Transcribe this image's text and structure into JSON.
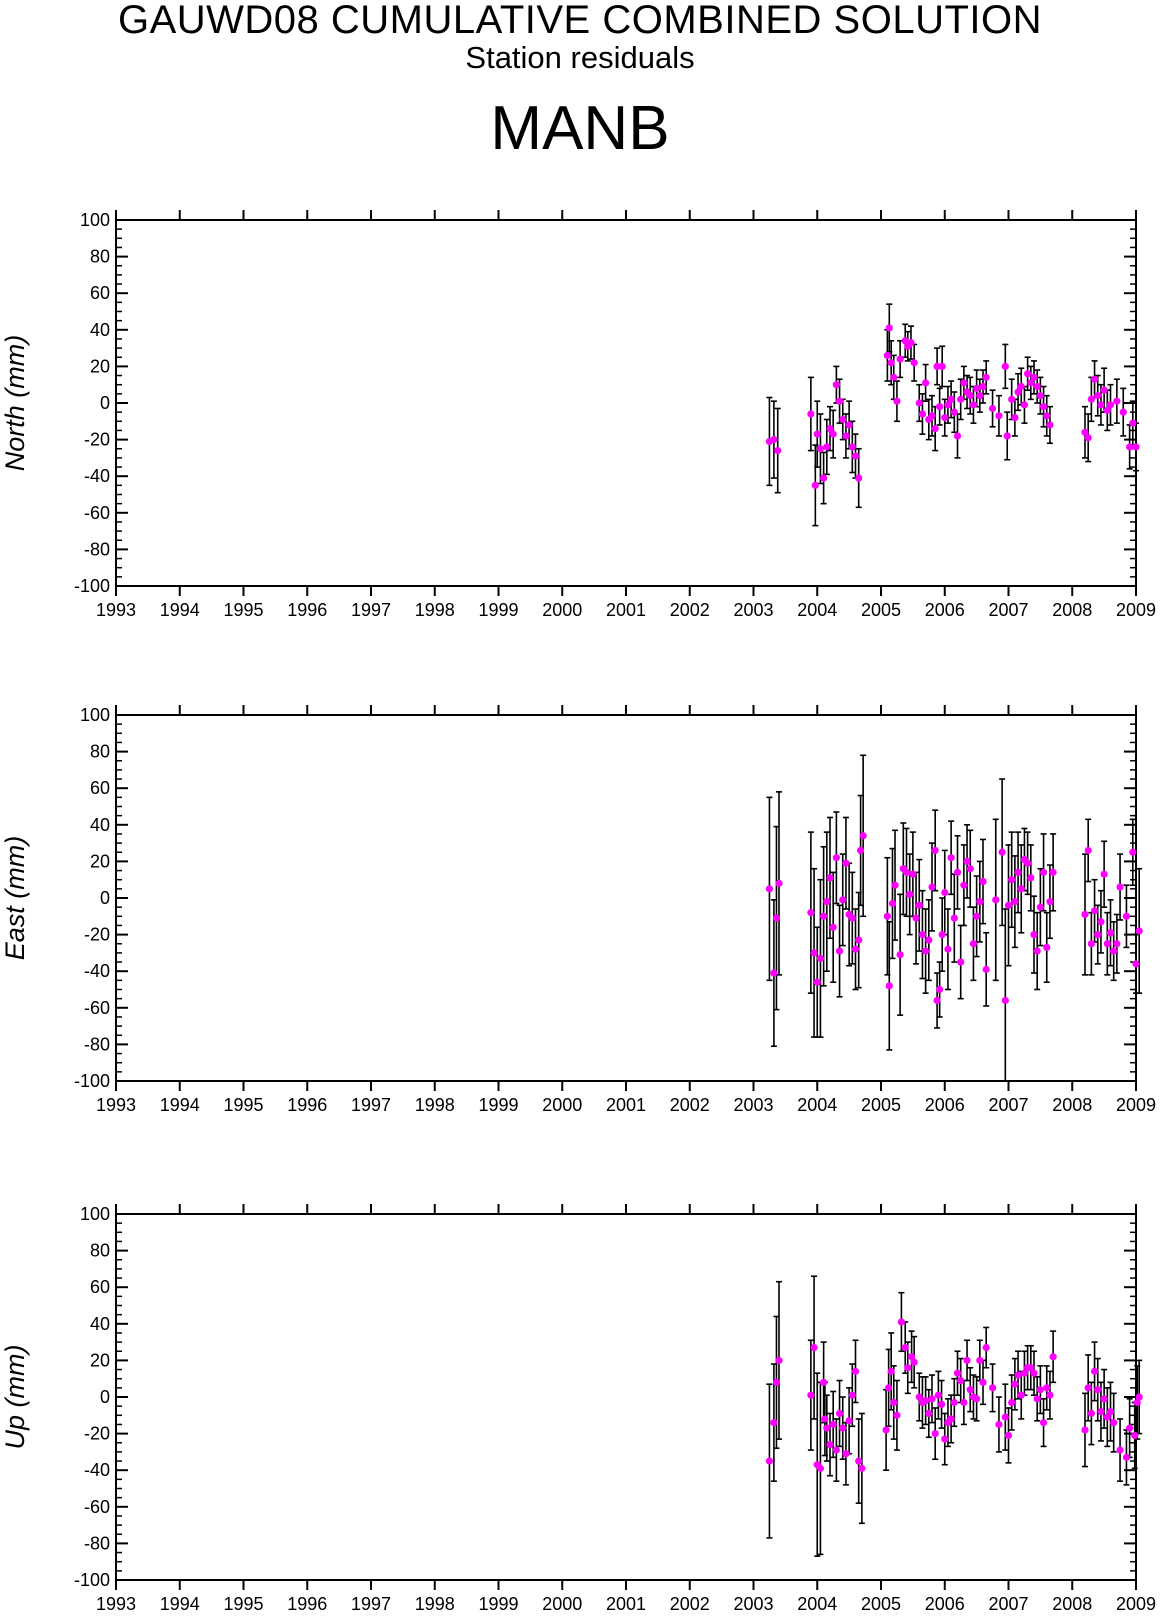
{
  "header": {
    "title": "GAUWD08 CUMULATIVE COMBINED SOLUTION",
    "subtitle": "Station residuals",
    "station": "MANB"
  },
  "colors": {
    "point": "#ff00ff",
    "error_bar": "#000000",
    "axis": "#000000"
  },
  "chart_data": [
    {
      "type": "scatter",
      "ylabel": "North (mm)",
      "xlim": [
        1993,
        2009
      ],
      "ylim": [
        -100,
        100
      ],
      "x_ticks": [
        "1993",
        "1994",
        "1995",
        "1996",
        "1997",
        "1998",
        "1999",
        "2000",
        "2001",
        "2002",
        "2003",
        "2004",
        "2005",
        "2006",
        "2007",
        "2008",
        "2009"
      ],
      "y_ticks": [
        "100",
        "80",
        "60",
        "40",
        "20",
        "0",
        "-20",
        "-40",
        "-60",
        "-80",
        "-100"
      ],
      "grid": false,
      "error_bars": true,
      "points": [
        [
          2003.25,
          -21,
          24
        ],
        [
          2003.32,
          -20,
          21
        ],
        [
          2003.38,
          -26,
          23
        ],
        [
          2003.9,
          -6,
          20
        ],
        [
          2003.97,
          -45,
          22
        ],
        [
          2004.0,
          -17,
          18
        ],
        [
          2004.05,
          -25,
          19
        ],
        [
          2004.1,
          -41,
          14
        ],
        [
          2004.15,
          -24,
          15
        ],
        [
          2004.2,
          -14,
          12
        ],
        [
          2004.25,
          -17,
          13
        ],
        [
          2004.3,
          10,
          10
        ],
        [
          2004.35,
          1,
          12
        ],
        [
          2004.4,
          -9,
          11
        ],
        [
          2004.45,
          -18,
          12
        ],
        [
          2004.5,
          -12,
          13
        ],
        [
          2004.55,
          -24,
          14
        ],
        [
          2004.6,
          -29,
          12
        ],
        [
          2004.65,
          -41,
          16
        ],
        [
          2005.1,
          26,
          14
        ],
        [
          2005.13,
          41,
          13
        ],
        [
          2005.16,
          22,
          12
        ],
        [
          2005.2,
          14,
          12
        ],
        [
          2005.25,
          1,
          11
        ],
        [
          2005.3,
          24,
          10
        ],
        [
          2005.38,
          34,
          9
        ],
        [
          2005.42,
          31,
          8
        ],
        [
          2005.47,
          33,
          9
        ],
        [
          2005.52,
          22,
          10
        ],
        [
          2005.6,
          0,
          10
        ],
        [
          2005.65,
          -6,
          11
        ],
        [
          2005.7,
          11,
          10
        ],
        [
          2005.75,
          -9,
          11
        ],
        [
          2005.8,
          -7,
          11
        ],
        [
          2005.85,
          -14,
          12
        ],
        [
          2005.88,
          20,
          10
        ],
        [
          2005.92,
          -2,
          10
        ],
        [
          2005.96,
          20,
          11
        ],
        [
          2006.0,
          -8,
          10
        ],
        [
          2006.05,
          -1,
          10
        ],
        [
          2006.1,
          2,
          10
        ],
        [
          2006.15,
          -5,
          11
        ],
        [
          2006.2,
          -18,
          12
        ],
        [
          2006.25,
          2,
          11
        ],
        [
          2006.3,
          11,
          9
        ],
        [
          2006.35,
          6,
          9
        ],
        [
          2006.4,
          4,
          10
        ],
        [
          2006.45,
          -1,
          10
        ],
        [
          2006.5,
          8,
          10
        ],
        [
          2006.55,
          4,
          9
        ],
        [
          2006.6,
          9,
          9
        ],
        [
          2006.65,
          14,
          9
        ],
        [
          2006.75,
          -3,
          10
        ],
        [
          2006.85,
          -7,
          11
        ],
        [
          2006.95,
          20,
          12
        ],
        [
          2006.98,
          -18,
          13
        ],
        [
          2007.05,
          2,
          11
        ],
        [
          2007.1,
          -8,
          10
        ],
        [
          2007.15,
          6,
          10
        ],
        [
          2007.2,
          9,
          10
        ],
        [
          2007.25,
          -1,
          10
        ],
        [
          2007.3,
          16,
          9
        ],
        [
          2007.35,
          11,
          9
        ],
        [
          2007.4,
          14,
          9
        ],
        [
          2007.45,
          9,
          9
        ],
        [
          2007.5,
          4,
          10
        ],
        [
          2007.55,
          -2,
          11
        ],
        [
          2007.6,
          -7,
          11
        ],
        [
          2007.65,
          -12,
          10
        ],
        [
          2008.2,
          -16,
          14
        ],
        [
          2008.25,
          -19,
          13
        ],
        [
          2008.3,
          2,
          12
        ],
        [
          2008.35,
          13,
          10
        ],
        [
          2008.4,
          4,
          11
        ],
        [
          2008.45,
          -1,
          11
        ],
        [
          2008.5,
          7,
          12
        ],
        [
          2008.55,
          -4,
          11
        ],
        [
          2008.6,
          -1,
          11
        ],
        [
          2008.7,
          1,
          12
        ],
        [
          2008.8,
          -5,
          13
        ],
        [
          2008.9,
          -24,
          12
        ],
        [
          2008.95,
          -11,
          12
        ],
        [
          2009.0,
          -24,
          13
        ]
      ]
    },
    {
      "type": "scatter",
      "ylabel": "East (mm)",
      "xlim": [
        1993,
        2009
      ],
      "ylim": [
        -100,
        100
      ],
      "x_ticks": [
        "1993",
        "1994",
        "1995",
        "1996",
        "1997",
        "1998",
        "1999",
        "2000",
        "2001",
        "2002",
        "2003",
        "2004",
        "2005",
        "2006",
        "2007",
        "2008",
        "2009"
      ],
      "y_ticks": [
        "100",
        "80",
        "60",
        "40",
        "20",
        "0",
        "-20",
        "-40",
        "-60",
        "-80",
        "-100"
      ],
      "grid": false,
      "error_bars": true,
      "points": [
        [
          2003.25,
          5,
          50
        ],
        [
          2003.32,
          -41,
          40
        ],
        [
          2003.36,
          -11,
          50
        ],
        [
          2003.4,
          8,
          50
        ],
        [
          2003.9,
          -8,
          44
        ],
        [
          2003.95,
          -30,
          46
        ],
        [
          2004.0,
          -46,
          30
        ],
        [
          2004.05,
          -33,
          43
        ],
        [
          2004.1,
          -10,
          38
        ],
        [
          2004.15,
          -2,
          38
        ],
        [
          2004.2,
          11,
          33
        ],
        [
          2004.25,
          -16,
          30
        ],
        [
          2004.3,
          22,
          25
        ],
        [
          2004.35,
          -29,
          25
        ],
        [
          2004.4,
          -1,
          25
        ],
        [
          2004.45,
          19,
          25
        ],
        [
          2004.5,
          -9,
          28
        ],
        [
          2004.55,
          -11,
          25
        ],
        [
          2004.6,
          -28,
          22
        ],
        [
          2004.65,
          -23,
          26
        ],
        [
          2004.68,
          26,
          30
        ],
        [
          2004.72,
          34,
          44
        ],
        [
          2005.1,
          -10,
          32
        ],
        [
          2005.13,
          -48,
          35
        ],
        [
          2005.18,
          -3,
          30
        ],
        [
          2005.22,
          7,
          30
        ],
        [
          2005.3,
          -31,
          33
        ],
        [
          2005.35,
          16,
          25
        ],
        [
          2005.4,
          14,
          24
        ],
        [
          2005.45,
          2,
          22
        ],
        [
          2005.5,
          13,
          23
        ],
        [
          2005.55,
          -11,
          25
        ],
        [
          2005.6,
          -4,
          25
        ],
        [
          2005.65,
          -20,
          24
        ],
        [
          2005.7,
          -29,
          23
        ],
        [
          2005.75,
          -23,
          22
        ],
        [
          2005.8,
          6,
          24
        ],
        [
          2005.85,
          26,
          22
        ],
        [
          2005.88,
          -56,
          15
        ],
        [
          2005.92,
          -50,
          15
        ],
        [
          2005.96,
          -20,
          20
        ],
        [
          2006.0,
          3,
          23
        ],
        [
          2006.05,
          -28,
          22
        ],
        [
          2006.1,
          22,
          20
        ],
        [
          2006.15,
          -11,
          24
        ],
        [
          2006.2,
          14,
          20
        ],
        [
          2006.25,
          -35,
          20
        ],
        [
          2006.3,
          7,
          22
        ],
        [
          2006.35,
          20,
          20
        ],
        [
          2006.4,
          16,
          21
        ],
        [
          2006.45,
          -25,
          20
        ],
        [
          2006.5,
          -10,
          22
        ],
        [
          2006.55,
          -2,
          22
        ],
        [
          2006.6,
          9,
          23
        ],
        [
          2006.65,
          -39,
          20
        ],
        [
          2006.8,
          -1,
          44
        ],
        [
          2006.9,
          25,
          40
        ],
        [
          2006.95,
          -56,
          50
        ],
        [
          2007.0,
          -4,
          33
        ],
        [
          2007.05,
          10,
          26
        ],
        [
          2007.1,
          -2,
          25
        ],
        [
          2007.15,
          14,
          22
        ],
        [
          2007.2,
          5,
          24
        ],
        [
          2007.25,
          21,
          17
        ],
        [
          2007.3,
          19,
          17
        ],
        [
          2007.35,
          11,
          18
        ],
        [
          2007.4,
          -20,
          21
        ],
        [
          2007.45,
          -29,
          21
        ],
        [
          2007.5,
          -5,
          21
        ],
        [
          2007.55,
          14,
          21
        ],
        [
          2007.6,
          -27,
          19
        ],
        [
          2007.65,
          -2,
          20
        ],
        [
          2007.7,
          14,
          21
        ],
        [
          2008.2,
          -9,
          33
        ],
        [
          2008.25,
          26,
          17
        ],
        [
          2008.3,
          -25,
          17
        ],
        [
          2008.35,
          -7,
          17
        ],
        [
          2008.4,
          -20,
          16
        ],
        [
          2008.45,
          -13,
          17
        ],
        [
          2008.5,
          13,
          18
        ],
        [
          2008.55,
          -25,
          17
        ],
        [
          2008.6,
          -19,
          18
        ],
        [
          2008.65,
          -29,
          16
        ],
        [
          2008.7,
          -25,
          16
        ],
        [
          2008.75,
          6,
          18
        ],
        [
          2008.85,
          -10,
          17
        ],
        [
          2008.95,
          25,
          18
        ],
        [
          2009.0,
          -36,
          16
        ],
        [
          2009.05,
          -18,
          34
        ]
      ]
    },
    {
      "type": "scatter",
      "ylabel": "Up (mm)",
      "xlim": [
        1993,
        2009
      ],
      "ylim": [
        -100,
        100
      ],
      "x_ticks": [
        "1993",
        "1994",
        "1995",
        "1996",
        "1997",
        "1998",
        "1999",
        "2000",
        "2001",
        "2002",
        "2003",
        "2004",
        "2005",
        "2006",
        "2007",
        "2008",
        "2009"
      ],
      "y_ticks": [
        "100",
        "80",
        "60",
        "40",
        "20",
        "0",
        "-20",
        "-40",
        "-60",
        "-80",
        "-100"
      ],
      "grid": false,
      "error_bars": true,
      "points": [
        [
          2003.25,
          -35,
          42
        ],
        [
          2003.32,
          -14,
          32
        ],
        [
          2003.36,
          8,
          36
        ],
        [
          2003.4,
          20,
          43
        ],
        [
          2003.9,
          1,
          30
        ],
        [
          2003.95,
          27,
          39
        ],
        [
          2004.0,
          -37,
          50
        ],
        [
          2004.05,
          -39,
          47
        ],
        [
          2004.1,
          8,
          22
        ],
        [
          2004.12,
          -12,
          20
        ],
        [
          2004.15,
          -17,
          18
        ],
        [
          2004.2,
          -26,
          17
        ],
        [
          2004.25,
          -15,
          18
        ],
        [
          2004.3,
          -29,
          17
        ],
        [
          2004.35,
          -9,
          18
        ],
        [
          2004.4,
          -17,
          17
        ],
        [
          2004.45,
          -31,
          17
        ],
        [
          2004.5,
          -13,
          18
        ],
        [
          2004.55,
          1,
          17
        ],
        [
          2004.6,
          14,
          17
        ],
        [
          2004.65,
          -35,
          23
        ],
        [
          2004.7,
          -39,
          30
        ],
        [
          2005.08,
          -18,
          22
        ],
        [
          2005.12,
          5,
          21
        ],
        [
          2005.16,
          14,
          21
        ],
        [
          2005.2,
          -3,
          20
        ],
        [
          2005.25,
          -10,
          19
        ],
        [
          2005.32,
          41,
          16
        ],
        [
          2005.38,
          27,
          14
        ],
        [
          2005.42,
          16,
          14
        ],
        [
          2005.48,
          22,
          14
        ],
        [
          2005.52,
          19,
          14
        ],
        [
          2005.6,
          0,
          13
        ],
        [
          2005.65,
          -3,
          14
        ],
        [
          2005.7,
          -2,
          13
        ],
        [
          2005.75,
          -9,
          13
        ],
        [
          2005.8,
          -1,
          13
        ],
        [
          2005.85,
          -20,
          14
        ],
        [
          2005.9,
          1,
          13
        ],
        [
          2005.95,
          -4,
          13
        ],
        [
          2006.0,
          -23,
          14
        ],
        [
          2006.05,
          -14,
          13
        ],
        [
          2006.1,
          -12,
          13
        ],
        [
          2006.15,
          -3,
          13
        ],
        [
          2006.2,
          13,
          12
        ],
        [
          2006.25,
          9,
          12
        ],
        [
          2006.3,
          -3,
          12
        ],
        [
          2006.35,
          20,
          11
        ],
        [
          2006.4,
          4,
          12
        ],
        [
          2006.45,
          0,
          12
        ],
        [
          2006.5,
          -1,
          12
        ],
        [
          2006.55,
          20,
          11
        ],
        [
          2006.6,
          8,
          12
        ],
        [
          2006.65,
          27,
          11
        ],
        [
          2006.75,
          5,
          13
        ],
        [
          2006.85,
          -15,
          15
        ],
        [
          2006.95,
          -11,
          18
        ],
        [
          2007.0,
          -21,
          15
        ],
        [
          2007.05,
          -3,
          15
        ],
        [
          2007.1,
          7,
          14
        ],
        [
          2007.15,
          12,
          13
        ],
        [
          2007.2,
          1,
          13
        ],
        [
          2007.25,
          13,
          12
        ],
        [
          2007.3,
          16,
          12
        ],
        [
          2007.35,
          16,
          12
        ],
        [
          2007.4,
          13,
          12
        ],
        [
          2007.45,
          -1,
          12
        ],
        [
          2007.5,
          4,
          13
        ],
        [
          2007.55,
          -14,
          13
        ],
        [
          2007.6,
          5,
          12
        ],
        [
          2007.65,
          1,
          13
        ],
        [
          2007.7,
          22,
          14
        ],
        [
          2008.2,
          -18,
          20
        ],
        [
          2008.25,
          5,
          18
        ],
        [
          2008.3,
          -9,
          17
        ],
        [
          2008.35,
          14,
          16
        ],
        [
          2008.4,
          4,
          17
        ],
        [
          2008.45,
          -8,
          16
        ],
        [
          2008.5,
          -1,
          16
        ],
        [
          2008.55,
          -11,
          16
        ],
        [
          2008.6,
          -8,
          16
        ],
        [
          2008.65,
          -14,
          16
        ],
        [
          2008.75,
          -29,
          17
        ],
        [
          2008.85,
          -33,
          15
        ],
        [
          2008.9,
          -17,
          16
        ],
        [
          2008.98,
          -21,
          18
        ],
        [
          2009.02,
          -3,
          20
        ],
        [
          2009.05,
          0,
          20
        ]
      ]
    }
  ]
}
